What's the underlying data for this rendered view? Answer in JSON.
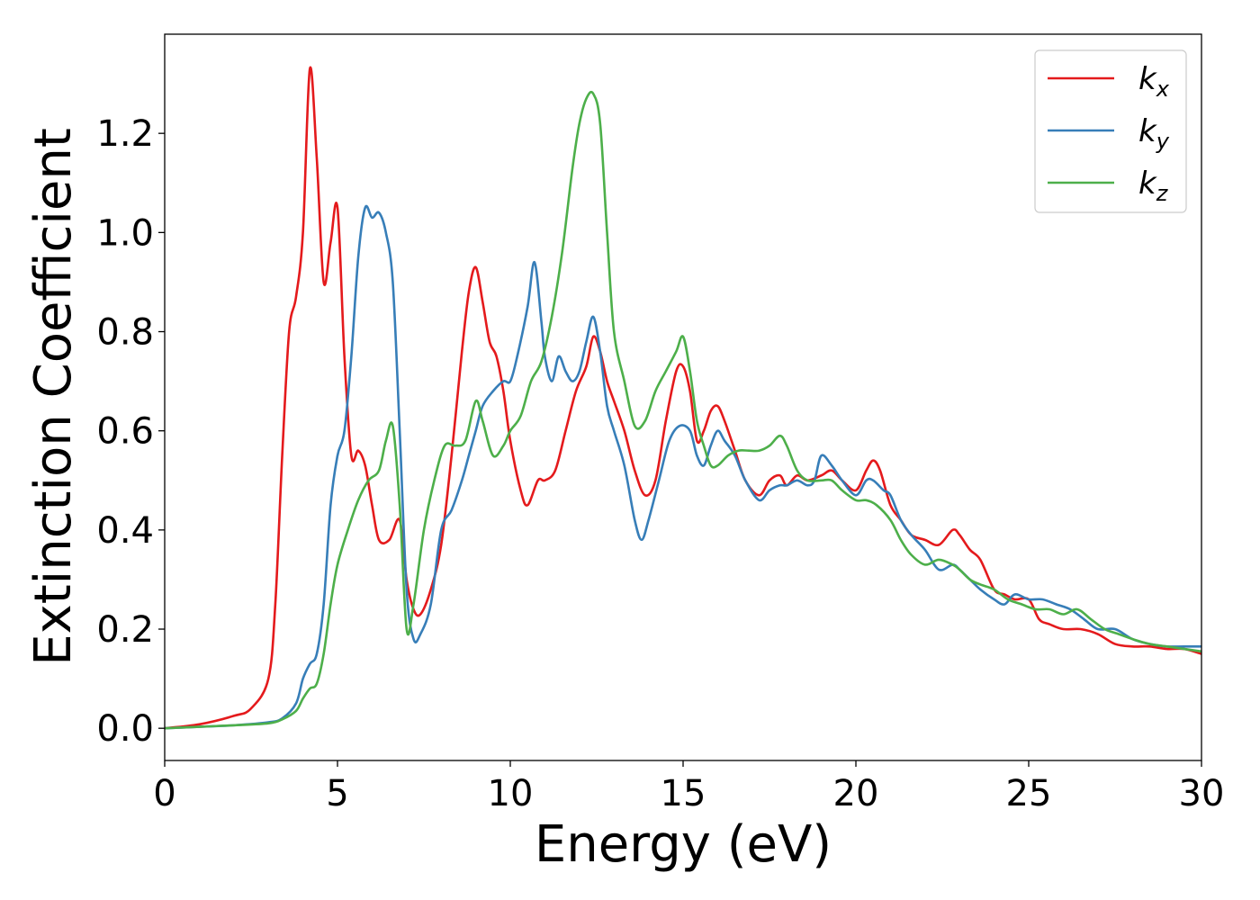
{
  "chart_data": {
    "type": "line",
    "title": "",
    "xlabel": "Energy (eV)",
    "ylabel": "Extinction Coefficient",
    "xlim": [
      0,
      30
    ],
    "ylim": [
      -0.065,
      1.4
    ],
    "xticks": [
      0,
      5,
      10,
      15,
      20,
      25,
      30
    ],
    "yticks": [
      0.0,
      0.2,
      0.4,
      0.6,
      0.8,
      1.0,
      1.2
    ],
    "grid": false,
    "legend_position": "top-right",
    "series": [
      {
        "name": "k",
        "subscript": "x",
        "color": "#e41a1c",
        "x": [
          0,
          1,
          2,
          2.5,
          3.0,
          3.2,
          3.4,
          3.6,
          3.8,
          4.0,
          4.2,
          4.4,
          4.6,
          4.8,
          5.0,
          5.2,
          5.4,
          5.6,
          5.8,
          6.0,
          6.2,
          6.5,
          6.8,
          7.0,
          7.2,
          7.4,
          7.7,
          8.0,
          8.3,
          8.6,
          8.8,
          9.0,
          9.2,
          9.4,
          9.6,
          9.8,
          10.0,
          10.3,
          10.5,
          10.8,
          11.0,
          11.3,
          11.6,
          11.9,
          12.2,
          12.4,
          12.6,
          12.8,
          13.0,
          13.3,
          13.6,
          13.9,
          14.2,
          14.5,
          14.8,
          15.0,
          15.2,
          15.4,
          15.6,
          15.8,
          16.0,
          16.2,
          16.5,
          16.8,
          17.2,
          17.5,
          17.8,
          18.0,
          18.3,
          18.6,
          19.0,
          19.3,
          19.6,
          20.0,
          20.3,
          20.5,
          20.7,
          21.0,
          21.3,
          21.6,
          22.0,
          22.4,
          22.8,
          23.0,
          23.3,
          23.6,
          24.0,
          24.3,
          24.6,
          25.0,
          25.3,
          25.6,
          26.0,
          26.5,
          27.0,
          27.5,
          28.0,
          28.5,
          29.0,
          29.5,
          30.0
        ],
        "y": [
          0.0,
          0.008,
          0.025,
          0.04,
          0.1,
          0.25,
          0.55,
          0.8,
          0.87,
          1.0,
          1.33,
          1.15,
          0.9,
          0.98,
          1.05,
          0.75,
          0.55,
          0.56,
          0.53,
          0.45,
          0.38,
          0.38,
          0.42,
          0.3,
          0.24,
          0.23,
          0.28,
          0.37,
          0.55,
          0.76,
          0.88,
          0.93,
          0.86,
          0.78,
          0.75,
          0.68,
          0.58,
          0.48,
          0.45,
          0.5,
          0.5,
          0.52,
          0.6,
          0.68,
          0.73,
          0.79,
          0.76,
          0.7,
          0.66,
          0.6,
          0.52,
          0.47,
          0.5,
          0.62,
          0.72,
          0.73,
          0.68,
          0.58,
          0.6,
          0.64,
          0.65,
          0.62,
          0.56,
          0.5,
          0.47,
          0.5,
          0.51,
          0.49,
          0.51,
          0.5,
          0.51,
          0.52,
          0.5,
          0.48,
          0.52,
          0.54,
          0.52,
          0.45,
          0.42,
          0.39,
          0.38,
          0.37,
          0.4,
          0.39,
          0.36,
          0.34,
          0.28,
          0.27,
          0.26,
          0.26,
          0.22,
          0.21,
          0.2,
          0.2,
          0.19,
          0.17,
          0.165,
          0.165,
          0.16,
          0.16,
          0.15
        ]
      },
      {
        "name": "k",
        "subscript": "y",
        "color": "#377eb8",
        "x": [
          0,
          1,
          2,
          3.0,
          3.4,
          3.8,
          4.0,
          4.2,
          4.4,
          4.6,
          4.8,
          5.0,
          5.2,
          5.4,
          5.6,
          5.8,
          6.0,
          6.2,
          6.4,
          6.6,
          6.8,
          7.0,
          7.2,
          7.4,
          7.7,
          8.0,
          8.3,
          8.6,
          8.8,
          9.0,
          9.2,
          9.5,
          9.8,
          10.0,
          10.2,
          10.5,
          10.7,
          10.9,
          11.0,
          11.2,
          11.4,
          11.6,
          11.8,
          12.0,
          12.2,
          12.4,
          12.6,
          12.8,
          13.0,
          13.3,
          13.6,
          13.8,
          14.0,
          14.3,
          14.6,
          14.9,
          15.2,
          15.4,
          15.6,
          15.8,
          16.0,
          16.2,
          16.5,
          16.8,
          17.2,
          17.5,
          17.8,
          18.0,
          18.3,
          18.6,
          18.8,
          19.0,
          19.3,
          19.6,
          20.0,
          20.3,
          20.5,
          20.8,
          21.0,
          21.3,
          21.6,
          22.0,
          22.4,
          22.8,
          23.0,
          23.3,
          23.6,
          24.0,
          24.3,
          24.6,
          25.0,
          25.4,
          25.8,
          26.2,
          26.6,
          27.0,
          27.5,
          28.0,
          28.5,
          29.0,
          29.5,
          30.0
        ],
        "y": [
          0.0,
          0.003,
          0.006,
          0.012,
          0.02,
          0.05,
          0.1,
          0.13,
          0.15,
          0.25,
          0.45,
          0.55,
          0.6,
          0.75,
          0.95,
          1.05,
          1.03,
          1.04,
          1.0,
          0.9,
          0.6,
          0.28,
          0.18,
          0.19,
          0.25,
          0.4,
          0.44,
          0.5,
          0.55,
          0.6,
          0.65,
          0.68,
          0.7,
          0.7,
          0.75,
          0.85,
          0.94,
          0.82,
          0.75,
          0.7,
          0.75,
          0.72,
          0.7,
          0.72,
          0.78,
          0.83,
          0.76,
          0.65,
          0.6,
          0.53,
          0.42,
          0.38,
          0.42,
          0.5,
          0.58,
          0.61,
          0.6,
          0.55,
          0.53,
          0.57,
          0.6,
          0.58,
          0.55,
          0.5,
          0.46,
          0.48,
          0.49,
          0.49,
          0.5,
          0.49,
          0.5,
          0.55,
          0.53,
          0.5,
          0.47,
          0.5,
          0.5,
          0.48,
          0.47,
          0.42,
          0.39,
          0.36,
          0.32,
          0.33,
          0.32,
          0.3,
          0.28,
          0.26,
          0.25,
          0.27,
          0.26,
          0.26,
          0.25,
          0.24,
          0.22,
          0.2,
          0.2,
          0.18,
          0.17,
          0.165,
          0.165,
          0.165
        ]
      },
      {
        "name": "k",
        "subscript": "z",
        "color": "#4daf4a",
        "x": [
          0,
          1,
          2,
          3.0,
          3.4,
          3.8,
          4.0,
          4.2,
          4.4,
          4.6,
          4.8,
          5.0,
          5.3,
          5.6,
          5.9,
          6.2,
          6.4,
          6.6,
          6.8,
          7.0,
          7.2,
          7.5,
          7.8,
          8.1,
          8.4,
          8.7,
          9.0,
          9.2,
          9.5,
          9.8,
          10.0,
          10.3,
          10.6,
          10.9,
          11.2,
          11.5,
          11.8,
          12.0,
          12.2,
          12.4,
          12.6,
          12.8,
          13.0,
          13.3,
          13.6,
          13.9,
          14.2,
          14.5,
          14.8,
          15.0,
          15.2,
          15.4,
          15.6,
          15.8,
          16.0,
          16.3,
          16.6,
          16.9,
          17.2,
          17.5,
          17.8,
          18.0,
          18.3,
          18.6,
          19.0,
          19.3,
          19.6,
          20.0,
          20.3,
          20.6,
          21.0,
          21.3,
          21.6,
          22.0,
          22.4,
          22.8,
          23.0,
          23.3,
          23.6,
          24.0,
          24.4,
          24.8,
          25.2,
          25.6,
          26.0,
          26.4,
          26.8,
          27.2,
          27.6,
          28.0,
          28.5,
          29.0,
          29.5,
          30.0
        ],
        "y": [
          0.0,
          0.003,
          0.006,
          0.01,
          0.018,
          0.035,
          0.06,
          0.08,
          0.09,
          0.15,
          0.25,
          0.33,
          0.4,
          0.46,
          0.5,
          0.52,
          0.58,
          0.61,
          0.45,
          0.2,
          0.25,
          0.4,
          0.5,
          0.57,
          0.57,
          0.58,
          0.66,
          0.62,
          0.55,
          0.57,
          0.6,
          0.63,
          0.7,
          0.74,
          0.83,
          0.96,
          1.13,
          1.22,
          1.27,
          1.28,
          1.22,
          1.0,
          0.8,
          0.7,
          0.61,
          0.62,
          0.68,
          0.72,
          0.76,
          0.79,
          0.72,
          0.62,
          0.57,
          0.53,
          0.53,
          0.55,
          0.56,
          0.56,
          0.56,
          0.57,
          0.59,
          0.57,
          0.52,
          0.5,
          0.5,
          0.5,
          0.48,
          0.46,
          0.46,
          0.45,
          0.42,
          0.38,
          0.35,
          0.33,
          0.34,
          0.33,
          0.32,
          0.3,
          0.29,
          0.28,
          0.26,
          0.25,
          0.24,
          0.24,
          0.23,
          0.24,
          0.22,
          0.2,
          0.19,
          0.18,
          0.17,
          0.165,
          0.16,
          0.155
        ]
      }
    ]
  }
}
